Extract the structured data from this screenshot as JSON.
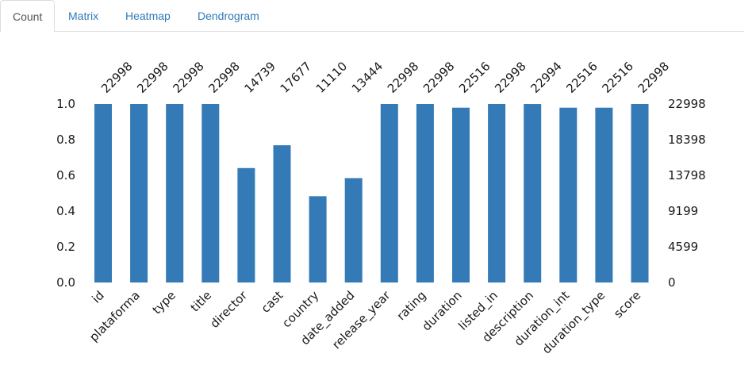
{
  "tabs": [
    {
      "label": "Count",
      "active": true
    },
    {
      "label": "Matrix",
      "active": false
    },
    {
      "label": "Heatmap",
      "active": false
    },
    {
      "label": "Dendrogram",
      "active": false
    }
  ],
  "colors": {
    "bar": "#337ab7"
  },
  "chart_data": {
    "type": "bar",
    "categories": [
      "id",
      "plataforma",
      "type",
      "title",
      "director",
      "cast",
      "country",
      "date_added",
      "release_year",
      "rating",
      "duration",
      "listed_in",
      "description",
      "duration_int",
      "duration_type",
      "score"
    ],
    "values": [
      22998,
      22998,
      22998,
      22998,
      14739,
      17677,
      11110,
      13444,
      22998,
      22998,
      22516,
      22998,
      22994,
      22516,
      22516,
      22998
    ],
    "total": 22998,
    "left_axis": {
      "ticks": [
        "0.0",
        "0.2",
        "0.4",
        "0.6",
        "0.8",
        "1.0"
      ],
      "ylim": [
        0,
        1
      ]
    },
    "right_axis": {
      "ticks": [
        "0",
        "4599",
        "9199",
        "13798",
        "18398",
        "22998"
      ]
    },
    "grid": false,
    "title": "",
    "xlabel": "",
    "ylabel": ""
  }
}
